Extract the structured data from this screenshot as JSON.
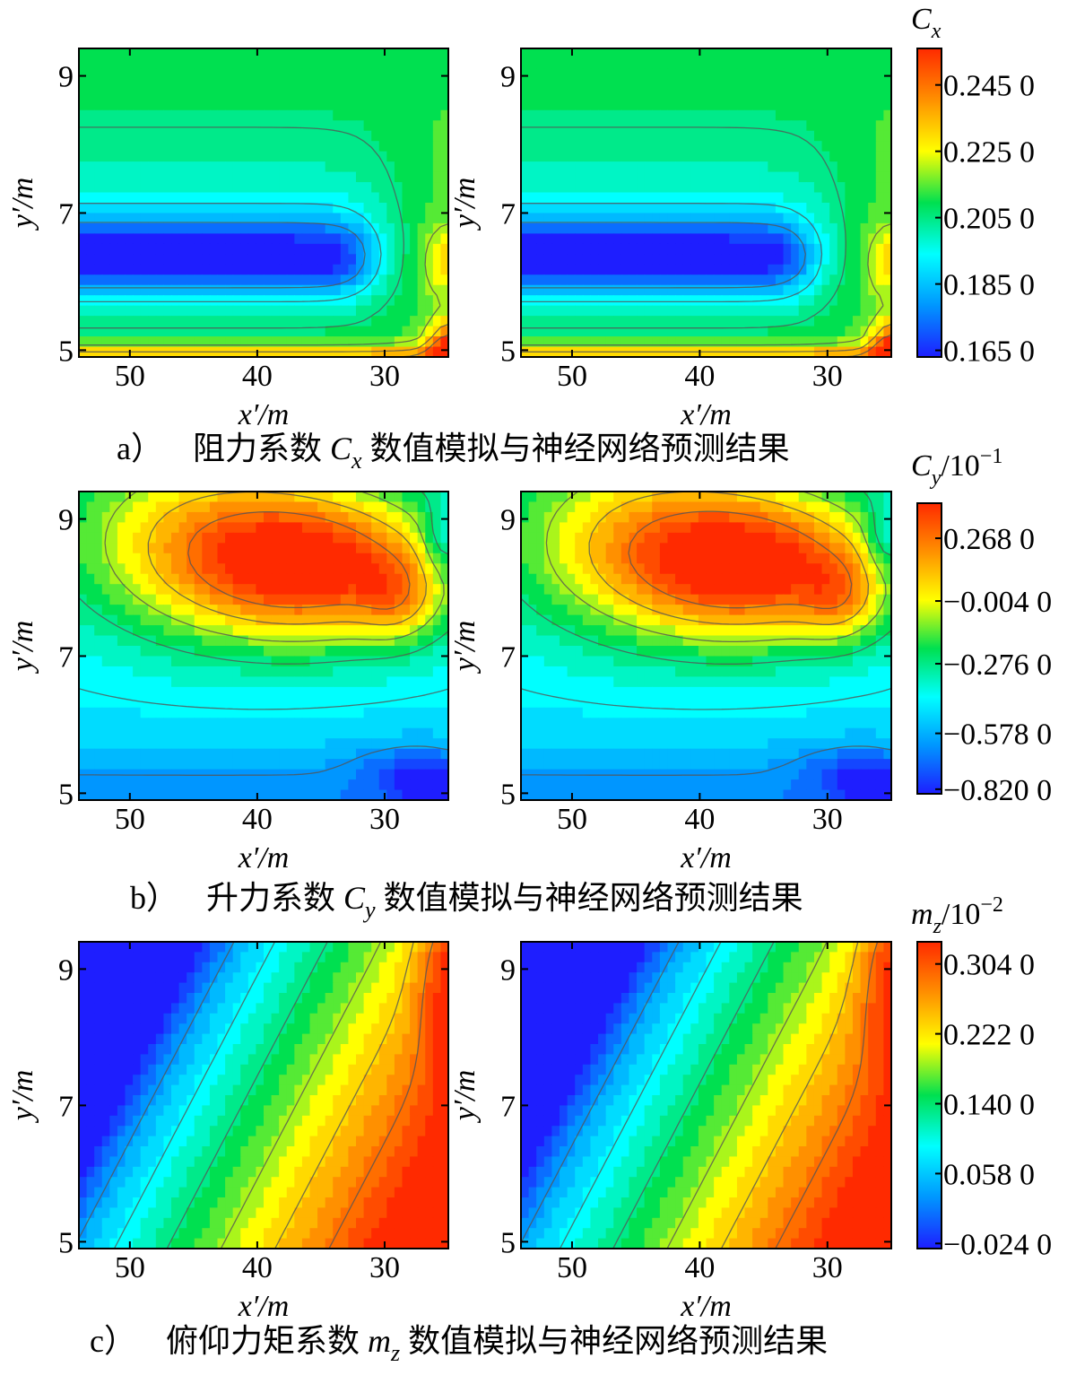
{
  "colorscale": [
    "#1e1eff",
    "#0096ff",
    "#00ffff",
    "#00e050",
    "#ffff00",
    "#ff9000",
    "#ff2a00"
  ],
  "chart_data": [
    {
      "type": "heatmap",
      "id": "a",
      "caption": "a）  阻力系数 Cx 数值模拟与神经网络预测结果",
      "caption_letter": "a）",
      "caption_text": "阻力系数 C",
      "caption_sub": "x",
      "caption_text2": "数值模拟与神经网络预测结果",
      "colorbar_title": "C",
      "colorbar_title_sub": "x",
      "colorbar_title_suffix": "",
      "colorbar_title_exp": "",
      "colorbar_ticks": [
        "0.245 0",
        "0.225 0",
        "0.205 0",
        "0.185 0",
        "0.165 0"
      ],
      "colorbar_values": [
        0.245,
        0.225,
        0.205,
        0.185,
        0.165
      ],
      "vrange": [
        0.163,
        0.256
      ],
      "xlabel": "x′/m",
      "ylabel": "y′/m",
      "xticks": [
        "50",
        "40",
        "30"
      ],
      "yticks": [
        "9",
        "7",
        "5"
      ],
      "xlim": [
        54,
        25
      ],
      "ylim": [
        4.9,
        9.4
      ],
      "panels": [
        "numerical simulation",
        "neural network prediction"
      ]
    },
    {
      "type": "heatmap",
      "id": "b",
      "caption_letter": "b）",
      "caption_text": "升力系数 C",
      "caption_sub": "y",
      "caption_text2": "数值模拟与神经网络预测结果",
      "colorbar_title": "C",
      "colorbar_title_sub": "y",
      "colorbar_title_suffix": "/10",
      "colorbar_title_exp": "−1",
      "colorbar_ticks": [
        "0.268 0",
        "−0.004 0",
        "−0.276 0",
        "−0.578 0",
        "−0.820 0"
      ],
      "colorbar_values": [
        0.268,
        -0.004,
        -0.276,
        -0.578,
        -0.82
      ],
      "vrange": [
        -0.84,
        0.42
      ],
      "xlabel": "x′/m",
      "ylabel": "y′/m",
      "xticks": [
        "50",
        "40",
        "30"
      ],
      "yticks": [
        "9",
        "7",
        "5"
      ],
      "xlim": [
        54,
        25
      ],
      "ylim": [
        4.9,
        9.4
      ],
      "panels": [
        "numerical simulation",
        "neural network prediction"
      ]
    },
    {
      "type": "heatmap",
      "id": "c",
      "caption_letter": "c）",
      "caption_text": "俯仰力矩系数 m",
      "caption_sub": "z",
      "caption_text2": "数值模拟与神经网络预测结果",
      "colorbar_title": "m",
      "colorbar_title_sub": "z",
      "colorbar_title_suffix": "/10",
      "colorbar_title_exp": "−2",
      "colorbar_ticks": [
        "0.304 0",
        "0.222 0",
        "0.140 0",
        "0.058 0",
        "−0.024 0"
      ],
      "colorbar_values": [
        0.304,
        0.222,
        0.14,
        0.058,
        -0.024
      ],
      "vrange": [
        -0.03,
        0.33
      ],
      "xlabel": "x′/m",
      "ylabel": "y′/m",
      "xticks": [
        "50",
        "40",
        "30"
      ],
      "yticks": [
        "9",
        "7",
        "5"
      ],
      "xlim": [
        54,
        25
      ],
      "ylim": [
        4.9,
        9.4
      ],
      "panels": [
        "numerical simulation",
        "neural network prediction"
      ]
    }
  ]
}
